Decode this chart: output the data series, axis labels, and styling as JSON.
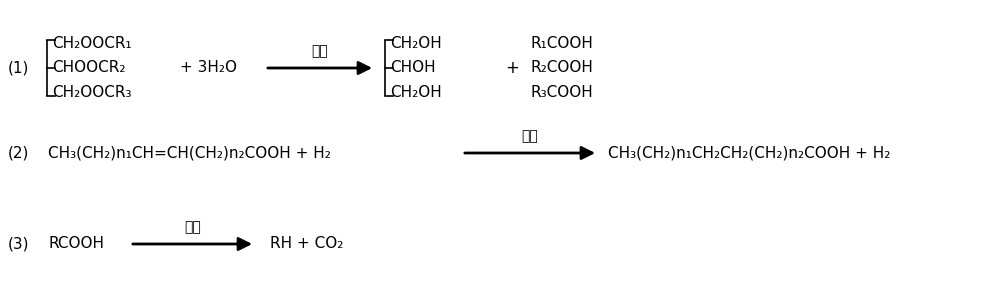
{
  "bg_color": "#ffffff",
  "text_color": "#000000",
  "figsize": [
    10.0,
    3.06
  ],
  "dpi": 100,
  "r1_label": "(1)",
  "r1_reactant": [
    "CH₂OOCR₁",
    "CHOOCR₂",
    "CH₂OOCR₃"
  ],
  "r1_plus": "+ 3H₂O",
  "r1_arrow_label": "水解",
  "r1_product1": [
    "CH₂OH",
    "CHOH",
    "CH₂OH"
  ],
  "r1_plus2": "+",
  "r1_product2": [
    "R₁COOH",
    "R₂COOH",
    "R₃COOH"
  ],
  "r2_label": "(2)",
  "r2_reactant": "CH₃(CH₂)n₁CH=CH(CH₂)n₂COOH + H₂",
  "r2_arrow_label": "加氢",
  "r2_product": "CH₃(CH₂)n₁CH₂CH₂(CH₂)n₂COOH + H₂",
  "r3_label": "(3)",
  "r3_reactant": "RCOOH",
  "r3_arrow_label": "脱罧",
  "r3_product": "RH + CO₂",
  "fs_main": 11,
  "fs_chinese": 10,
  "lw_arrow": 2.0,
  "lw_bracket": 1.2
}
